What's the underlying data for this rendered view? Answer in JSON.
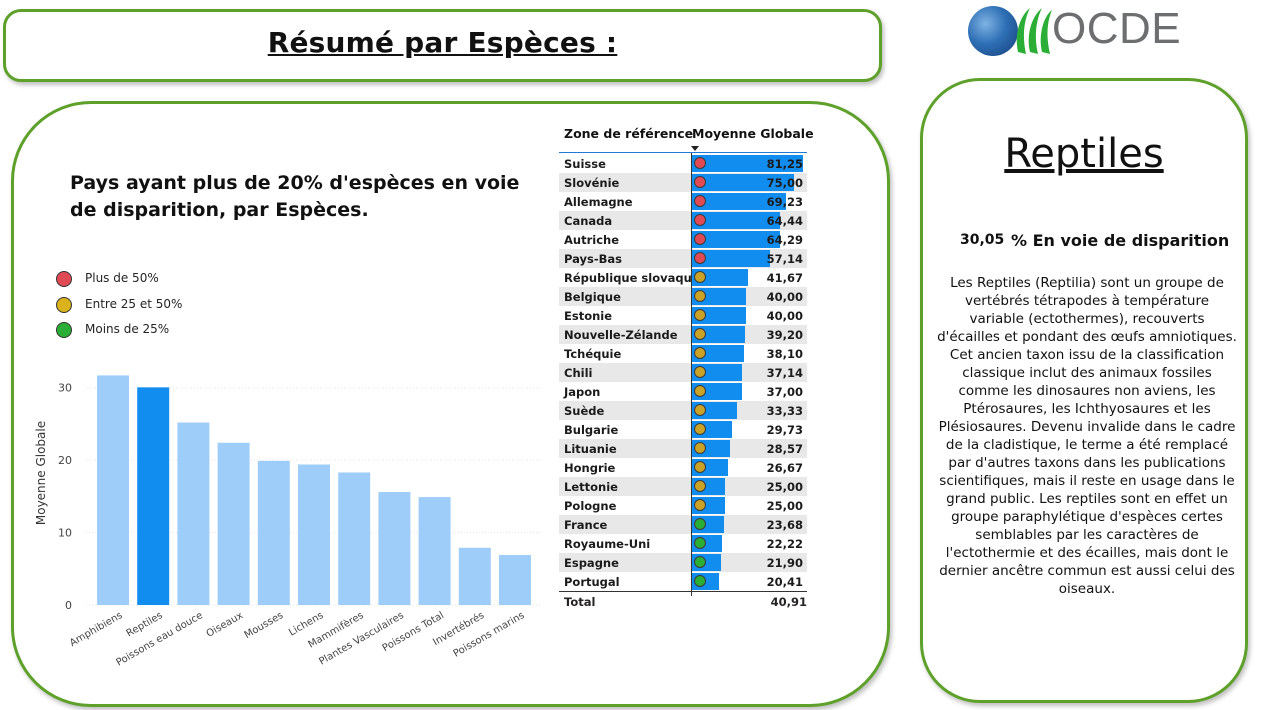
{
  "header": {
    "title": "Résumé par Espèces :"
  },
  "logo": {
    "text": "OCDE"
  },
  "chart": {
    "title": "Pays ayant plus de 20% d'espèces en voie de disparition, par Espèces.",
    "legend": [
      {
        "label": "Plus de 50%",
        "color": "#e04a55"
      },
      {
        "label": "Entre 25 et  50%",
        "color": "#d9b21c"
      },
      {
        "label": "Moins de 25%",
        "color": "#2bae35"
      }
    ]
  },
  "chart_data": {
    "type": "bar",
    "categories": [
      "Amphibiens",
      "Reptiles",
      "Poissons eau douce",
      "Oiseaux",
      "Mousses",
      "Lichens",
      "Mammifères",
      "Plantes Vasculaires",
      "Poissons Total",
      "Invertébrés",
      "Poissons marins"
    ],
    "values": [
      31.7,
      30.05,
      25.2,
      22.4,
      19.9,
      19.4,
      18.3,
      15.6,
      14.9,
      7.9,
      6.9
    ],
    "selected_category": "Reptiles",
    "xlabel": "",
    "ylabel": "Moyenne Globale",
    "ylim": [
      0,
      33
    ],
    "yticks": [
      0,
      10,
      20,
      30
    ],
    "colors": {
      "default": "#9fcdf9",
      "selected": "#118df0"
    }
  },
  "table": {
    "col_zone": "Zone de référence",
    "col_mean": "Moyenne Globale",
    "rows": [
      {
        "name": "Suisse",
        "value": "81,25",
        "num": 81.25,
        "status": "high"
      },
      {
        "name": "Slovénie",
        "value": "75,00",
        "num": 75.0,
        "status": "high"
      },
      {
        "name": "Allemagne",
        "value": "69,23",
        "num": 69.23,
        "status": "high"
      },
      {
        "name": "Canada",
        "value": "64,44",
        "num": 64.44,
        "status": "high"
      },
      {
        "name": "Autriche",
        "value": "64,29",
        "num": 64.29,
        "status": "high"
      },
      {
        "name": "Pays-Bas",
        "value": "57,14",
        "num": 57.14,
        "status": "high"
      },
      {
        "name": "République slovaque",
        "value": "41,67",
        "num": 41.67,
        "status": "mid"
      },
      {
        "name": "Belgique",
        "value": "40,00",
        "num": 40.0,
        "status": "mid"
      },
      {
        "name": "Estonie",
        "value": "40,00",
        "num": 40.0,
        "status": "mid"
      },
      {
        "name": "Nouvelle-Zélande",
        "value": "39,20",
        "num": 39.2,
        "status": "mid"
      },
      {
        "name": "Tchéquie",
        "value": "38,10",
        "num": 38.1,
        "status": "mid"
      },
      {
        "name": "Chili",
        "value": "37,14",
        "num": 37.14,
        "status": "mid"
      },
      {
        "name": "Japon",
        "value": "37,00",
        "num": 37.0,
        "status": "mid"
      },
      {
        "name": "Suède",
        "value": "33,33",
        "num": 33.33,
        "status": "mid"
      },
      {
        "name": "Bulgarie",
        "value": "29,73",
        "num": 29.73,
        "status": "mid"
      },
      {
        "name": "Lituanie",
        "value": "28,57",
        "num": 28.57,
        "status": "mid"
      },
      {
        "name": "Hongrie",
        "value": "26,67",
        "num": 26.67,
        "status": "mid"
      },
      {
        "name": "Lettonie",
        "value": "25,00",
        "num": 25.0,
        "status": "mid"
      },
      {
        "name": "Pologne",
        "value": "25,00",
        "num": 25.0,
        "status": "mid"
      },
      {
        "name": "France",
        "value": "23,68",
        "num": 23.68,
        "status": "low"
      },
      {
        "name": "Royaume-Uni",
        "value": "22,22",
        "num": 22.22,
        "status": "low"
      },
      {
        "name": "Espagne",
        "value": "21,90",
        "num": 21.9,
        "status": "low"
      },
      {
        "name": "Portugal",
        "value": "20,41",
        "num": 20.41,
        "status": "low"
      }
    ],
    "total_label": "Total",
    "total_value": "40,91",
    "bar_max": 81.25,
    "status_colors": {
      "high": "#e04a55",
      "mid": "#c9a227",
      "low": "#2bae35"
    }
  },
  "side": {
    "title": "Reptiles",
    "kpi_value": "30,05",
    "kpi_label": "% En voie de disparition",
    "description": "Les Reptiles (Reptilia) sont un groupe de vertébrés tétrapodes à température variable (ectothermes), recouverts d'écailles et pondant des œufs amniotiques. Cet ancien taxon issu de la classification classique inclut des animaux fossiles comme les dinosaures non aviens, les Ptérosaures, les Ichthyosaures et les Plésiosaures. Devenu invalide dans le cadre de la cladistique, le terme a été remplacé par d'autres taxons dans les publications scientifiques, mais il reste en usage dans le grand public. Les reptiles sont en effet un groupe paraphylétique d'espèces certes semblables par les caractères de l'ectothermie et des écailles, mais dont le dernier ancêtre commun est aussi celui des oiseaux."
  }
}
